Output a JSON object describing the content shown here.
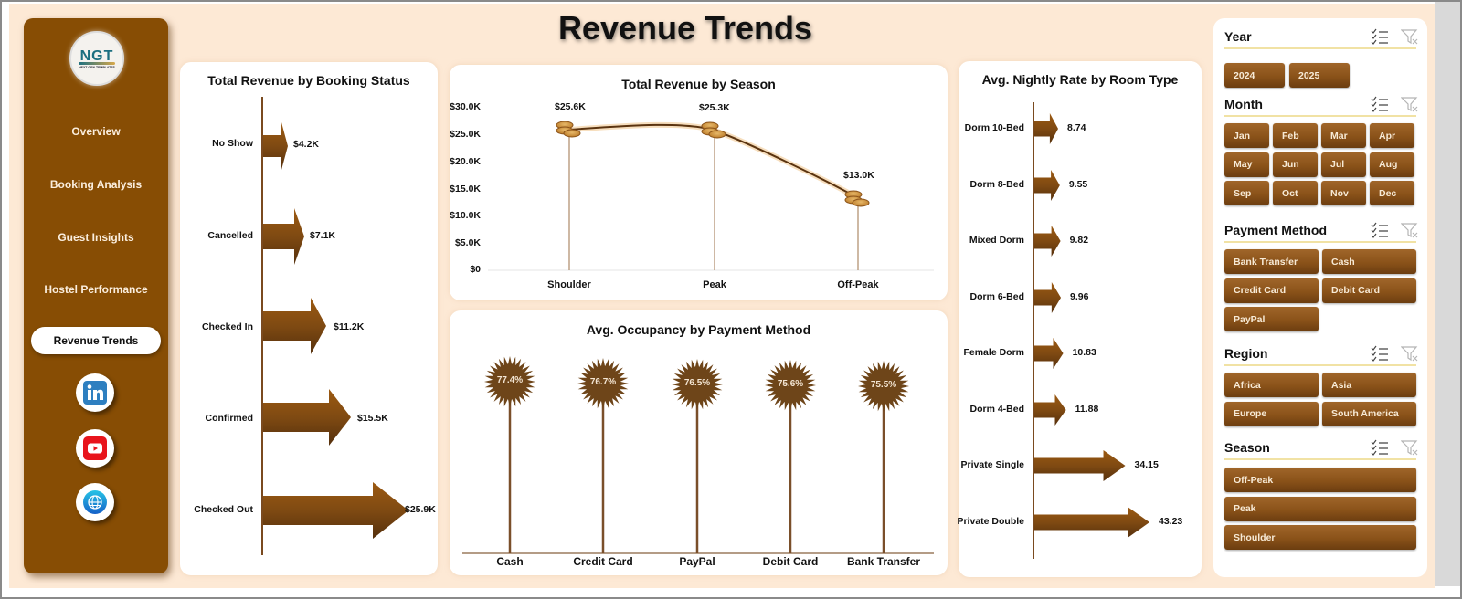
{
  "page_title": "Revenue Trends",
  "logo": {
    "text": "NGT",
    "subtitle": "NEXT GEN TEMPLATES"
  },
  "sidebar": {
    "items": [
      {
        "label": "Overview",
        "active": false
      },
      {
        "label": "Booking Analysis",
        "active": false
      },
      {
        "label": "Guest Insights",
        "active": false
      },
      {
        "label": "Hostel Performance",
        "active": false
      },
      {
        "label": "Revenue Trends",
        "active": true
      }
    ],
    "social": [
      "linkedin-icon",
      "youtube-icon",
      "globe-icon"
    ]
  },
  "colors": {
    "brand_brown": "#874d04",
    "background": "#fde9d5",
    "axis": "#7a4a1f",
    "chip": "#8a5219",
    "slicer_underline": "#f1e2a4"
  },
  "chart_data": [
    {
      "type": "bar",
      "orientation": "horizontal",
      "title": "Total Revenue  by Booking Status",
      "categories": [
        "No Show",
        "Cancelled",
        "Checked In",
        "Confirmed",
        "Checked Out"
      ],
      "values": [
        4.2,
        7.1,
        11.2,
        15.5,
        25.9
      ],
      "labels": [
        "$4.2K",
        "$7.1K",
        "$11.2K",
        "$15.5K",
        "$25.9K"
      ],
      "unit": "$K",
      "marker": "arrow"
    },
    {
      "type": "line",
      "title": "Total Revenue  by Season",
      "categories": [
        "Shoulder",
        "Peak",
        "Off-Peak"
      ],
      "values": [
        25.6,
        25.3,
        13.0
      ],
      "labels": [
        "$25.6K",
        "$25.3K",
        "$13.0K"
      ],
      "yticks": [
        "$0",
        "$5.0K",
        "$10.0K",
        "$15.0K",
        "$20.0K",
        "$25.0K",
        "$30.0K"
      ],
      "ylim": [
        0,
        30
      ],
      "marker": "coins",
      "smooth": true
    },
    {
      "type": "bar",
      "orientation": "vertical",
      "title": "Avg. Occupancy by Payment Method",
      "categories": [
        "Cash",
        "Credit Card",
        "PayPal",
        "Debit Card",
        "Bank Transfer"
      ],
      "values": [
        77.4,
        76.7,
        76.5,
        75.6,
        75.5
      ],
      "labels": [
        "77.4%",
        "76.7%",
        "76.5%",
        "75.6%",
        "75.5%"
      ],
      "marker": "starburst-lollipop"
    },
    {
      "type": "bar",
      "orientation": "horizontal",
      "title": "Avg. Nightly Rate by Room Type",
      "categories": [
        "Dorm 10-Bed",
        "Dorm 8-Bed",
        "Mixed Dorm",
        "Dorm 6-Bed",
        "Female Dorm",
        "Dorm 4-Bed",
        "Private Single",
        "Private Double"
      ],
      "values": [
        8.74,
        9.55,
        9.82,
        9.96,
        10.83,
        11.88,
        34.15,
        43.23
      ],
      "labels": [
        "8.74",
        "9.55",
        "9.82",
        "9.96",
        "10.83",
        "11.88",
        "34.15",
        "43.23"
      ],
      "marker": "arrow"
    }
  ],
  "slicers": [
    {
      "title": "Year",
      "items": [
        "2024",
        "2025"
      ]
    },
    {
      "title": "Month",
      "items": [
        "Jan",
        "Feb",
        "Mar",
        "Apr",
        "May",
        "Jun",
        "Jul",
        "Aug",
        "Sep",
        "Oct",
        "Nov",
        "Dec"
      ]
    },
    {
      "title": "Payment Method",
      "items": [
        "Bank Transfer",
        "Cash",
        "Credit Card",
        "Debit Card",
        "PayPal"
      ]
    },
    {
      "title": "Region",
      "items": [
        "Africa",
        "Asia",
        "Europe",
        "South America"
      ]
    },
    {
      "title": "Season",
      "items": [
        "Off-Peak",
        "Peak",
        "Shoulder"
      ]
    }
  ]
}
